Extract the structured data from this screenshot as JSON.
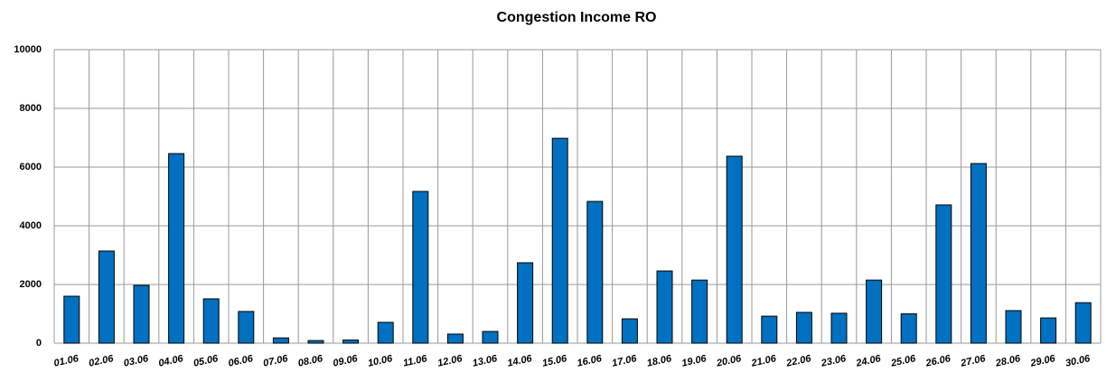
{
  "chart_data": {
    "type": "bar",
    "title": "Congestion Income RO",
    "categories": [
      "01.06",
      "02.06",
      "03.06",
      "04.06",
      "05.06",
      "06.06",
      "07.06",
      "08.06",
      "09.06",
      "10.06",
      "11.06",
      "12.06",
      "13.06",
      "14.06",
      "15.06",
      "16.06",
      "17.06",
      "18.06",
      "19.06",
      "20.06",
      "21.06",
      "22.06",
      "23.06",
      "24.06",
      "25.06",
      "26.06",
      "27.06",
      "28.06",
      "29.06",
      "30.06"
    ],
    "values": [
      1600,
      3140,
      1970,
      6460,
      1510,
      1080,
      180,
      90,
      110,
      710,
      5170,
      310,
      400,
      2740,
      6980,
      4830,
      830,
      2460,
      2150,
      6370,
      920,
      1050,
      1020,
      2150,
      1000,
      4710,
      6120,
      1110,
      860,
      1380
    ],
    "color": "#0070c0",
    "ylim": [
      0,
      10000
    ],
    "yticks": [
      0,
      2000,
      4000,
      6000,
      8000,
      10000
    ],
    "grid": true
  }
}
